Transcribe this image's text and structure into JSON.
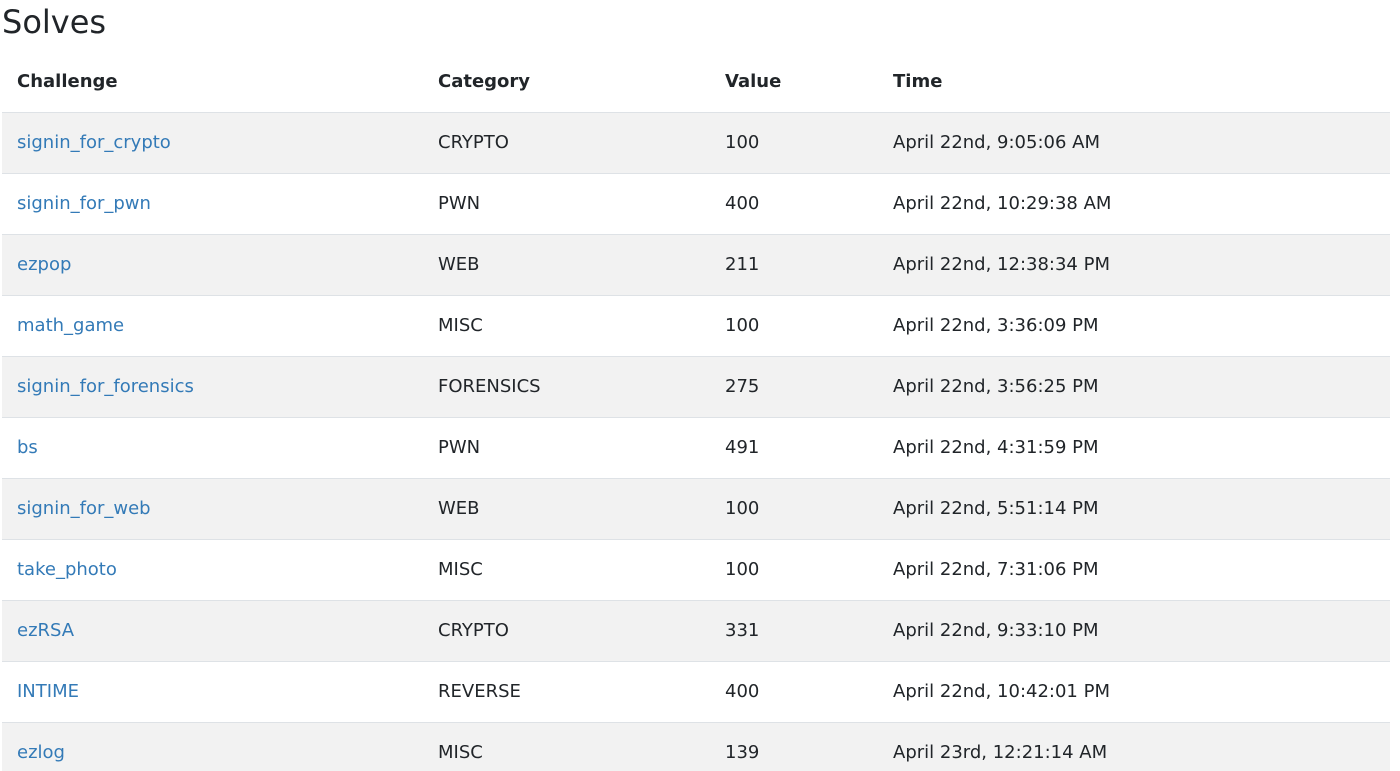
{
  "page": {
    "title": "Solves"
  },
  "table": {
    "headers": {
      "challenge": "Challenge",
      "category": "Category",
      "value": "Value",
      "time": "Time"
    },
    "rows": [
      {
        "challenge": "signin_for_crypto",
        "category": "CRYPTO",
        "value": "100",
        "time": "April 22nd, 9:05:06 AM"
      },
      {
        "challenge": "signin_for_pwn",
        "category": "PWN",
        "value": "400",
        "time": "April 22nd, 10:29:38 AM"
      },
      {
        "challenge": "ezpop",
        "category": "WEB",
        "value": "211",
        "time": "April 22nd, 12:38:34 PM"
      },
      {
        "challenge": "math_game",
        "category": "MISC",
        "value": "100",
        "time": "April 22nd, 3:36:09 PM"
      },
      {
        "challenge": "signin_for_forensics",
        "category": "FORENSICS",
        "value": "275",
        "time": "April 22nd, 3:56:25 PM"
      },
      {
        "challenge": "bs",
        "category": "PWN",
        "value": "491",
        "time": "April 22nd, 4:31:59 PM"
      },
      {
        "challenge": "signin_for_web",
        "category": "WEB",
        "value": "100",
        "time": "April 22nd, 5:51:14 PM"
      },
      {
        "challenge": "take_photo",
        "category": "MISC",
        "value": "100",
        "time": "April 22nd, 7:31:06 PM"
      },
      {
        "challenge": "ezRSA",
        "category": "CRYPTO",
        "value": "331",
        "time": "April 22nd, 9:33:10 PM"
      },
      {
        "challenge": "INTIME",
        "category": "REVERSE",
        "value": "400",
        "time": "April 22nd, 10:42:01 PM"
      },
      {
        "challenge": "ezlog",
        "category": "MISC",
        "value": "139",
        "time": "April 23rd, 12:21:14 AM"
      }
    ]
  },
  "colors": {
    "link": "#337ab7",
    "text": "#212529",
    "stripe": "#f2f2f2",
    "border": "#dee2e6"
  }
}
